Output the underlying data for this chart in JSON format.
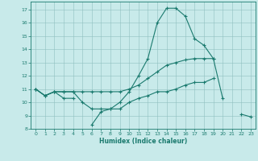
{
  "xlabel": "Humidex (Indice chaleur)",
  "x": [
    0,
    1,
    2,
    3,
    4,
    5,
    6,
    7,
    8,
    9,
    10,
    11,
    12,
    13,
    14,
    15,
    16,
    17,
    18,
    19,
    20,
    21,
    22,
    23
  ],
  "line1": [
    11.0,
    10.5,
    10.8,
    10.3,
    10.3,
    null,
    8.3,
    9.3,
    9.5,
    10.0,
    10.8,
    12.0,
    13.3,
    16.0,
    17.1,
    17.1,
    16.5,
    14.8,
    14.3,
    13.3,
    10.3,
    null,
    9.1,
    8.9
  ],
  "line2": [
    11.0,
    10.5,
    10.8,
    10.8,
    10.8,
    10.8,
    10.8,
    10.8,
    10.8,
    10.8,
    11.0,
    11.3,
    11.8,
    12.3,
    12.8,
    13.0,
    13.2,
    13.3,
    13.3,
    13.3,
    null,
    null,
    null,
    null
  ],
  "line3": [
    11.0,
    10.5,
    10.8,
    10.8,
    10.8,
    10.0,
    9.5,
    9.5,
    9.5,
    9.5,
    10.0,
    10.3,
    10.5,
    10.8,
    10.8,
    11.0,
    11.3,
    11.5,
    11.5,
    11.8,
    null,
    null,
    null,
    null
  ],
  "line_color": "#1a7a6e",
  "bg_color": "#c8eaea",
  "grid_color": "#8fbfbf",
  "ylim": [
    8,
    17.6
  ],
  "yticks": [
    8,
    9,
    10,
    11,
    12,
    13,
    14,
    15,
    16,
    17
  ],
  "xlim": [
    -0.5,
    23.5
  ],
  "xticks": [
    0,
    1,
    2,
    3,
    4,
    5,
    6,
    7,
    8,
    9,
    10,
    11,
    12,
    13,
    14,
    15,
    16,
    17,
    18,
    19,
    20,
    21,
    22,
    23
  ]
}
